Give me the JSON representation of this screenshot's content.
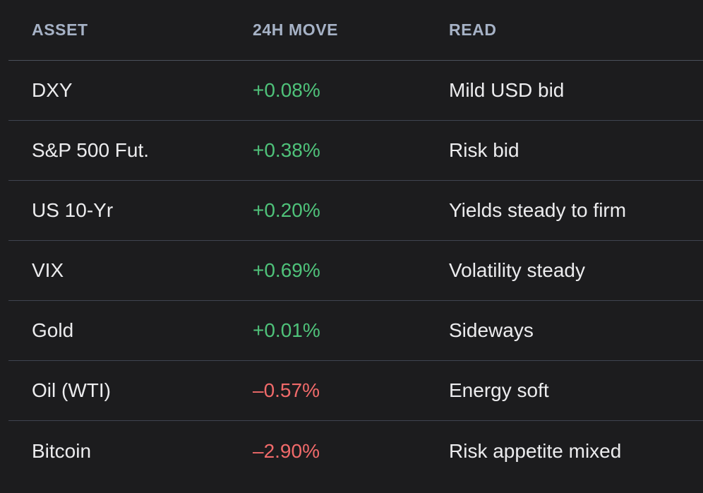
{
  "columns": {
    "asset": "ASSET",
    "move": "24H MOVE",
    "read": "READ"
  },
  "colors": {
    "positive": "#4fc27a",
    "negative": "#f06a6a",
    "header": "#a6b2c6",
    "divider": "#3f4450",
    "background": "#1c1c1e"
  },
  "rows": [
    {
      "asset": "DXY",
      "move": "+0.08%",
      "direction": "positive",
      "read": "Mild USD bid"
    },
    {
      "asset": "S&P 500 Fut.",
      "move": "+0.38%",
      "direction": "positive",
      "read": "Risk bid"
    },
    {
      "asset": "US 10-Yr",
      "move": "+0.20%",
      "direction": "positive",
      "read": "Yields steady to firm"
    },
    {
      "asset": "VIX",
      "move": "+0.69%",
      "direction": "positive",
      "read": "Volatility steady"
    },
    {
      "asset": "Gold",
      "move": "+0.01%",
      "direction": "positive",
      "read": "Sideways"
    },
    {
      "asset": "Oil (WTI)",
      "move": "–0.57%",
      "direction": "negative",
      "read": "Energy soft"
    },
    {
      "asset": "Bitcoin",
      "move": "–2.90%",
      "direction": "negative",
      "read": "Risk appetite mixed"
    }
  ]
}
